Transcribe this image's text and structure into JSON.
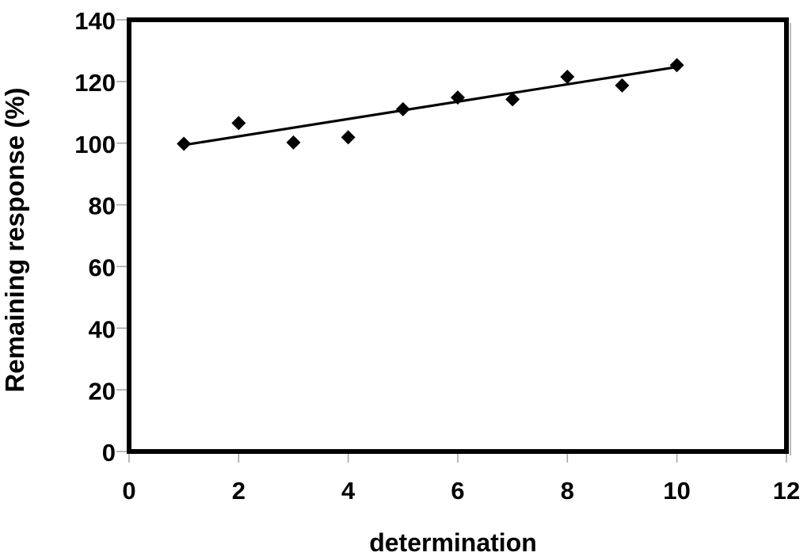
{
  "figure": {
    "background_color": "#ffffff",
    "frame_color": "#000000",
    "tick_mark_color": "#a6a6a6",
    "shadow_color": "#b8b8b8"
  },
  "chart_data": {
    "type": "scatter",
    "title": "",
    "xlabel": "determination",
    "ylabel": "Remaining response (%)",
    "xlim": [
      0,
      12
    ],
    "ylim": [
      0,
      140
    ],
    "xticks": [
      0,
      2,
      4,
      6,
      8,
      10,
      12
    ],
    "yticks": [
      0,
      20,
      40,
      60,
      80,
      100,
      120,
      140
    ],
    "grid": false,
    "legend": false,
    "series": [
      {
        "name": "remaining response",
        "x": [
          1,
          2,
          3,
          4,
          5,
          6,
          7,
          8,
          9,
          10
        ],
        "y": [
          99.8,
          106.5,
          100.2,
          101.9,
          111.0,
          114.8,
          114.2,
          121.5,
          118.7,
          125.3
        ],
        "marker": {
          "shape": "diamond",
          "color": "#000000",
          "size": 18
        }
      }
    ],
    "trendline": {
      "x1": 1,
      "y1": 99.4,
      "x2": 10,
      "y2": 124.7,
      "color": "#000000",
      "width": 3.2
    }
  }
}
